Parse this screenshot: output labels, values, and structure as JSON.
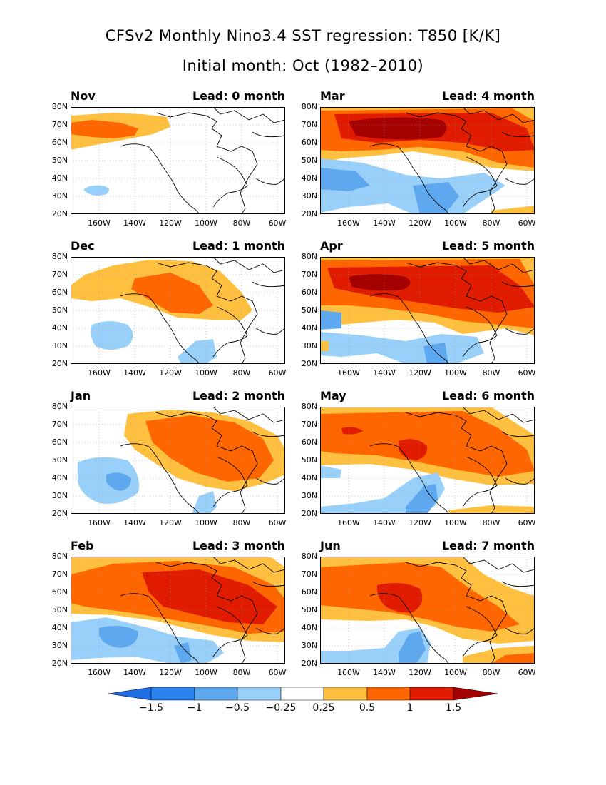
{
  "header": {
    "title_line1": "CFSv2 Monthly Nino3.4 SST regression: T850 [K/K]",
    "title_line2": "Initial month: Oct (1982–2010)"
  },
  "axes": {
    "lat_labels": [
      "80N",
      "70N",
      "60N",
      "50N",
      "40N",
      "30N",
      "20N"
    ],
    "lon_labels": [
      "160W",
      "140W",
      "120W",
      "100W",
      "80W",
      "60W"
    ]
  },
  "panels": [
    {
      "month": "Nov",
      "lead": "Lead: 0 month"
    },
    {
      "month": "Mar",
      "lead": "Lead: 4 month"
    },
    {
      "month": "Dec",
      "lead": "Lead: 1 month"
    },
    {
      "month": "Apr",
      "lead": "Lead: 5 month"
    },
    {
      "month": "Jan",
      "lead": "Lead: 2 month"
    },
    {
      "month": "May",
      "lead": "Lead: 6 month"
    },
    {
      "month": "Feb",
      "lead": "Lead: 3 month"
    },
    {
      "month": "Jun",
      "lead": "Lead: 7 month"
    }
  ],
  "colorbar": {
    "labels": [
      "−1.5",
      "−1",
      "−0.5",
      "−0.25",
      "0.25",
      "0.5",
      "1",
      "1.5"
    ],
    "colors": {
      "neg_extreme": "#1e6ee6",
      "neg_strong": "#2b83f0",
      "neg_mid": "#5ea8f0",
      "neg_weak": "#99d0fa",
      "neutral": "#ffffff",
      "pos_weak": "#ffbf3f",
      "pos_mid": "#ff6600",
      "pos_strong": "#e11b00",
      "pos_extreme": "#a50000"
    }
  }
}
